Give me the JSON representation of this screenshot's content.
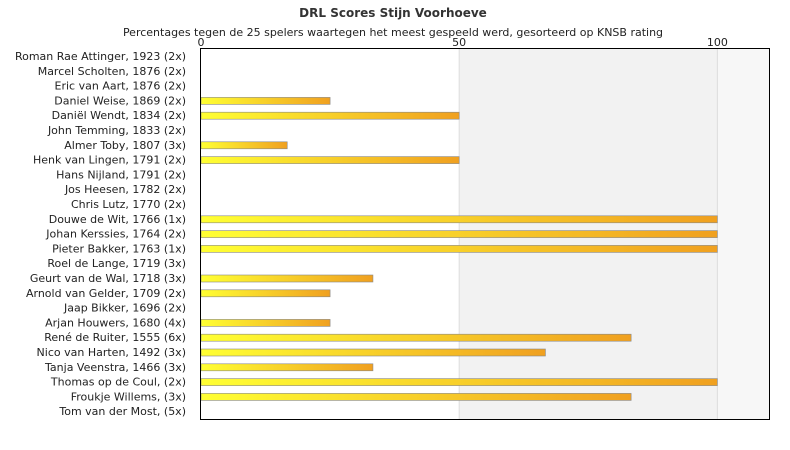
{
  "chart_data": {
    "type": "bar",
    "orientation": "horizontal",
    "title": "DRL Scores Stijn Voorhoeve",
    "subtitle": "Percentages tegen de 25 spelers waartegen het meest gespeeld werd, gesorteerd op KNSB rating",
    "xlim": [
      0,
      110
    ],
    "xticks": [
      0,
      50,
      100
    ],
    "categories": [
      "Roman Rae Attinger, 1923 (2x)",
      "Marcel Scholten, 1876 (2x)",
      "Eric van Aart, 1876 (2x)",
      "Daniel Weise, 1869 (2x)",
      "Daniël Wendt, 1834 (2x)",
      "John Temming, 1833 (2x)",
      "Almer Toby, 1807 (3x)",
      "Henk van Lingen, 1791 (2x)",
      "Hans Nijland, 1791 (2x)",
      "Jos Heesen, 1782 (2x)",
      "Chris Lutz, 1770 (2x)",
      "Douwe de Wit, 1766 (1x)",
      "Johan Kerssies, 1764 (2x)",
      "Pieter Bakker, 1763 (1x)",
      "Roel de Lange, 1719 (3x)",
      "Geurt van de Wal, 1718 (3x)",
      "Arnold van Gelder, 1709 (2x)",
      "Jaap Bikker, 1696 (2x)",
      "Arjan Houwers, 1680 (4x)",
      "René de Ruiter, 1555 (6x)",
      "Nico van Harten, 1492 (3x)",
      "Tanja Veenstra, 1466 (3x)",
      "Thomas op de Coul,  (2x)",
      "Froukje Willems,  (3x)",
      "Tom van der Most,  (5x)"
    ],
    "values": [
      0,
      0,
      0,
      25,
      50,
      0,
      16.7,
      50,
      0,
      0,
      0,
      100,
      100,
      100,
      0,
      33.3,
      25,
      0,
      25,
      83.3,
      66.7,
      33.3,
      100,
      83.3,
      0
    ],
    "colors": {
      "bar_start": "#ffff33",
      "bar_end": "#f0a020",
      "bar_edge": "#888888",
      "band_shade": "#f2f2f2",
      "band_light": "#f7f7f7"
    }
  }
}
